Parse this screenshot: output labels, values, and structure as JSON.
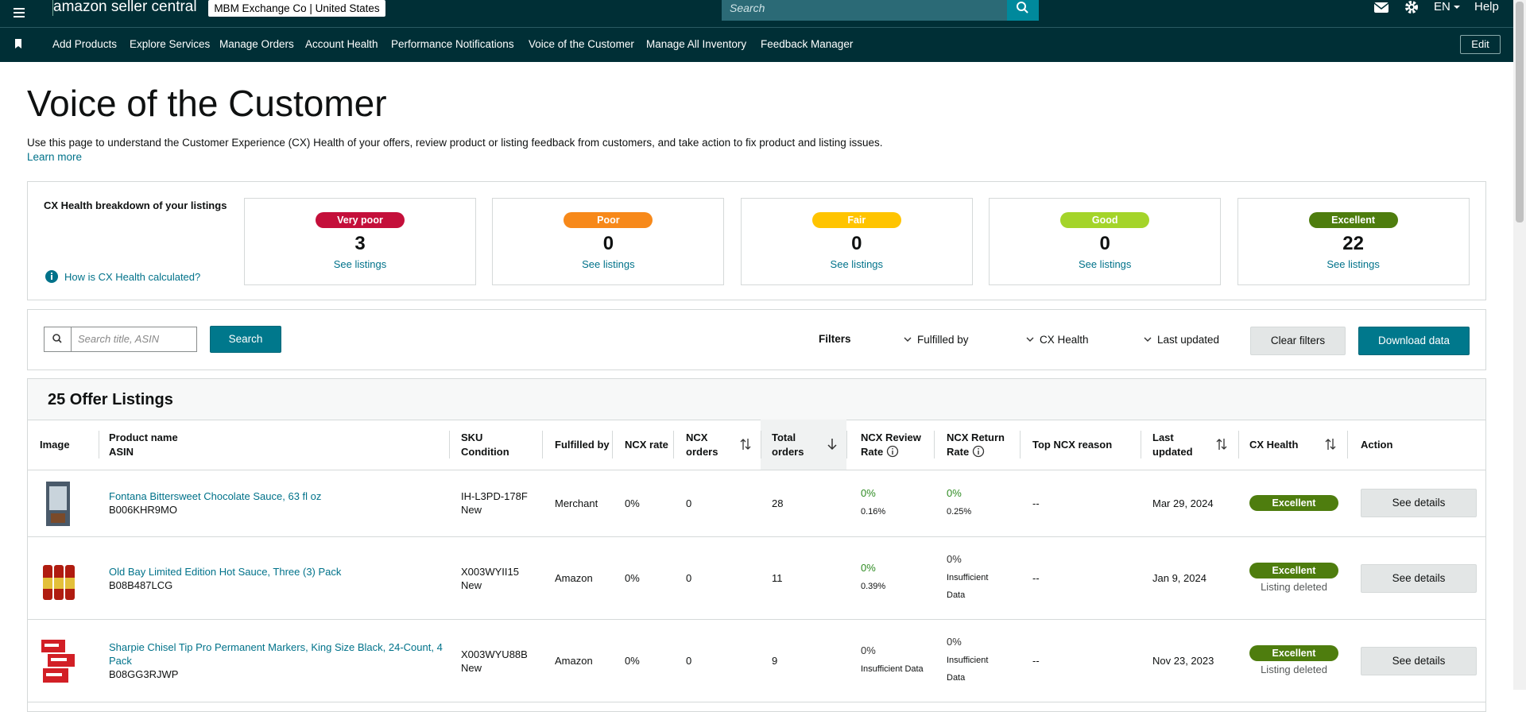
{
  "header": {
    "brand": "amazon seller central",
    "store": "MBM Exchange Co | United States",
    "search_placeholder": "Search",
    "language": "EN",
    "help": "Help"
  },
  "nav": {
    "items": [
      "Add Products",
      "Explore Services",
      "Manage Orders",
      "Account Health",
      "Performance Notifications",
      "Voice of the Customer",
      "Manage All Inventory",
      "Feedback Manager"
    ],
    "edit": "Edit"
  },
  "page": {
    "title": "Voice of the Customer",
    "description": "Use this page to understand the Customer Experience (CX) Health of your offers, review product or listing feedback from customers, and take action to fix product and listing issues.",
    "learn_more": "Learn more"
  },
  "cx_health": {
    "title": "CX Health breakdown of your listings",
    "help_link": "How is CX Health calculated?",
    "cards": [
      {
        "badge": "Very poor",
        "color": "#c40f3a",
        "text_color": "#ffffff",
        "count": 3,
        "link": "See listings"
      },
      {
        "badge": "Poor",
        "color": "#f7891a",
        "text_color": "#ffffff",
        "count": 0,
        "link": "See listings"
      },
      {
        "badge": "Fair",
        "color": "#ffc400",
        "text_color": "#ffffff",
        "count": 0,
        "link": "See listings"
      },
      {
        "badge": "Good",
        "color": "#a4d42a",
        "text_color": "#ffffff",
        "count": 0,
        "link": "See listings"
      },
      {
        "badge": "Excellent",
        "color": "#4e7d0e",
        "text_color": "#ffffff",
        "count": 22,
        "link": "See listings"
      }
    ]
  },
  "toolbar": {
    "search_placeholder": "Search title, ASIN",
    "search_button": "Search",
    "filters_label": "Filters",
    "filters": [
      "Fulfilled by",
      "CX Health",
      "Last updated"
    ],
    "clear": "Clear filters",
    "download": "Download data"
  },
  "listings": {
    "title": "25 Offer Listings",
    "columns": [
      {
        "label": "Image"
      },
      {
        "label": "Product name",
        "sub": "ASIN"
      },
      {
        "label": "SKU",
        "sub": "Condition"
      },
      {
        "label": "Fulfilled by"
      },
      {
        "label": "NCX rate"
      },
      {
        "label": "NCX orders"
      },
      {
        "label": "Total orders"
      },
      {
        "label": "NCX Review Rate"
      },
      {
        "label": "NCX Return Rate"
      },
      {
        "label": "Top NCX reason"
      },
      {
        "label": "Last updated"
      },
      {
        "label": "CX Health"
      },
      {
        "label": "Action"
      }
    ],
    "rows": [
      {
        "name": "Fontana Bittersweet Chocolate Sauce, 63 fl oz",
        "asin": "B006KHR9MO",
        "sku": "IH-L3PD-178F",
        "condition": "New",
        "fulfilled_by": "Merchant",
        "ncx_rate": "0%",
        "ncx_orders": "0",
        "total_orders": "28",
        "review_rate": "0%",
        "review_sub": "0.16%",
        "review_color": "#2e8b22",
        "return_rate": "0%",
        "return_sub": "0.25%",
        "return_color": "#2e8b22",
        "top_reason": "--",
        "last_updated": "Mar 29, 2024",
        "cx_health": "Excellent",
        "action": "See details"
      },
      {
        "name": "Old Bay Limited Edition Hot Sauce, Three (3) Pack",
        "asin": "B08B487LCG",
        "sku": "X003WYII15",
        "condition": "New",
        "fulfilled_by": "Amazon",
        "ncx_rate": "0%",
        "ncx_orders": "0",
        "total_orders": "11",
        "review_rate": "0%",
        "review_sub": "0.39%",
        "review_color": "#2e8b22",
        "return_rate": "0%",
        "return_sub": "Insufficient Data",
        "return_color": "#333333",
        "top_reason": "--",
        "last_updated": "Jan 9, 2024",
        "cx_health": "Excellent",
        "cx_sub": "Listing deleted",
        "action": "See details"
      },
      {
        "name": "Sharpie Chisel Tip Pro Permanent Markers, King Size Black, 24-Count, 4 Pack",
        "asin": "B08GG3RJWP",
        "sku": "X003WYU88B",
        "condition": "New",
        "fulfilled_by": "Amazon",
        "ncx_rate": "0%",
        "ncx_orders": "0",
        "total_orders": "9",
        "review_rate": "0%",
        "review_sub": "Insufficient Data",
        "review_color": "#333333",
        "return_rate": "0%",
        "return_sub": "Insufficient Data",
        "return_color": "#333333",
        "top_reason": "--",
        "last_updated": "Nov 23, 2023",
        "cx_health": "Excellent",
        "cx_sub": "Listing deleted",
        "action": "See details"
      }
    ]
  }
}
